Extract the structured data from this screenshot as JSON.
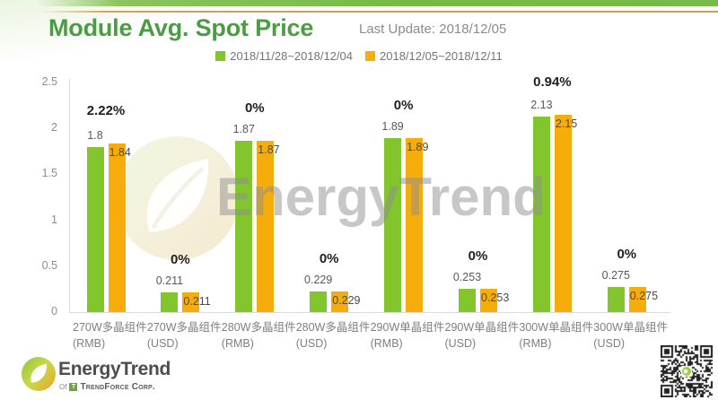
{
  "header": {
    "title": "Module Avg. Spot Price",
    "last_update": "Last Update: 2018/12/05"
  },
  "watermark": {
    "text": "EnergyTrend"
  },
  "footer": {
    "brand": "EnergyTrend",
    "sub_of": "Of",
    "sub_company": "TrendForce Corp."
  },
  "colors": {
    "title_green": "#4c9b45",
    "bar_green": "#82c52d",
    "bar_orange": "#f6ac0a",
    "axis_gray": "#dcdcdc"
  },
  "chart_data": {
    "type": "bar",
    "title": "Module Avg. Spot Price",
    "xlabel": "",
    "ylabel": "",
    "ylim": [
      0,
      2.5
    ],
    "y_ticks": [
      "0",
      "0.5",
      "1",
      "1.5",
      "2",
      "2.5"
    ],
    "grid": false,
    "legend_position": "top",
    "categories": [
      {
        "name": "270W多晶组件",
        "unit": "(RMB)"
      },
      {
        "name": "270W多晶组件",
        "unit": "(USD)"
      },
      {
        "name": "280W多晶组件",
        "unit": "(RMB)"
      },
      {
        "name": "280W多晶组件",
        "unit": "(USD)"
      },
      {
        "name": "290W单晶组件",
        "unit": "(RMB)"
      },
      {
        "name": "290W单晶组件",
        "unit": "(USD)"
      },
      {
        "name": "300W单晶组件",
        "unit": "(RMB)"
      },
      {
        "name": "300W单晶组件",
        "unit": "(USD)"
      }
    ],
    "series": [
      {
        "name": "2018/11/28~2018/12/04",
        "color": "#82c52d",
        "values": [
          1.8,
          0.211,
          1.87,
          0.229,
          1.89,
          0.253,
          2.13,
          0.275
        ],
        "value_labels": [
          "1.8",
          "0.211",
          "1.87",
          "0.229",
          "1.89",
          "0.253",
          "2.13",
          "0.275"
        ]
      },
      {
        "name": "2018/12/05~2018/12/11",
        "color": "#f6ac0a",
        "values": [
          1.84,
          0.211,
          1.87,
          0.229,
          1.89,
          0.253,
          2.15,
          0.275
        ],
        "value_labels": [
          "1.84",
          "0.211",
          "1.87",
          "0.229",
          "1.89",
          "0.253",
          "2.15",
          "0.275"
        ]
      }
    ],
    "change_labels": [
      "2.22%",
      "0%",
      "0%",
      "0%",
      "0%",
      "0%",
      "0.94%",
      "0%"
    ]
  }
}
